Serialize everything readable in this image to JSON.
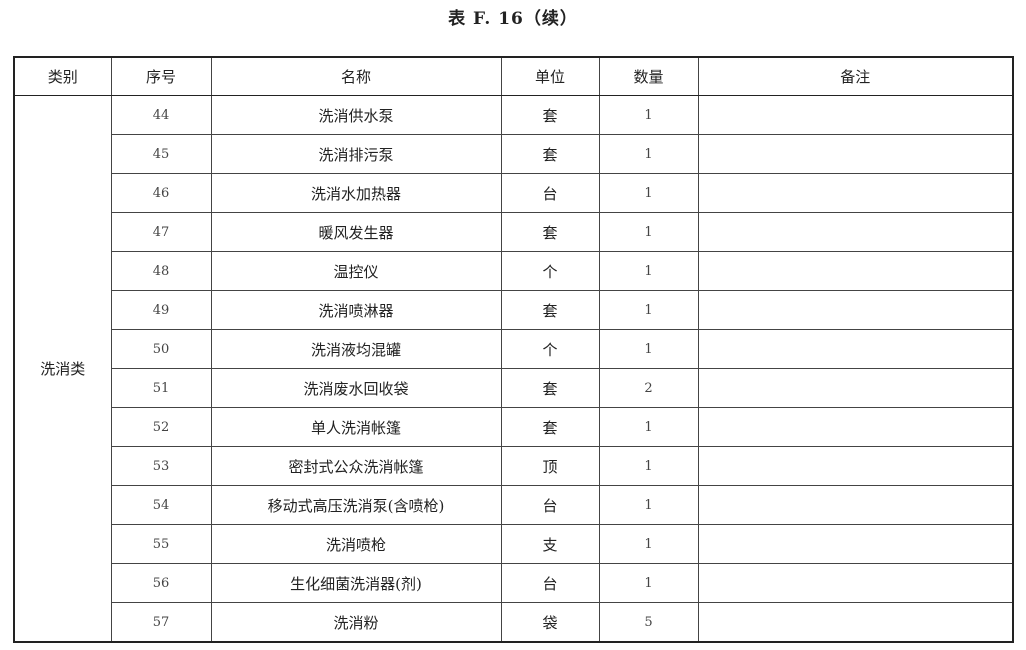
{
  "title": "表 F. 16（续）",
  "headers": [
    "类别",
    "序号",
    "名称",
    "单位",
    "数量",
    "备注"
  ],
  "category": "洗消类",
  "rows": [
    {
      "no": "44",
      "name": "洗消供水泵",
      "unit": "套",
      "qty": "1",
      "note": ""
    },
    {
      "no": "45",
      "name": "洗消排污泵",
      "unit": "套",
      "qty": "1",
      "note": ""
    },
    {
      "no": "46",
      "name": "洗消水加热器",
      "unit": "台",
      "qty": "1",
      "note": ""
    },
    {
      "no": "47",
      "name": "暖风发生器",
      "unit": "套",
      "qty": "1",
      "note": ""
    },
    {
      "no": "48",
      "name": "温控仪",
      "unit": "个",
      "qty": "1",
      "note": ""
    },
    {
      "no": "49",
      "name": "洗消喷淋器",
      "unit": "套",
      "qty": "1",
      "note": ""
    },
    {
      "no": "50",
      "name": "洗消液均混罐",
      "unit": "个",
      "qty": "1",
      "note": ""
    },
    {
      "no": "51",
      "name": "洗消废水回收袋",
      "unit": "套",
      "qty": "2",
      "note": ""
    },
    {
      "no": "52",
      "name": "单人洗消帐篷",
      "unit": "套",
      "qty": "1",
      "note": ""
    },
    {
      "no": "53",
      "name": "密封式公众洗消帐篷",
      "unit": "顶",
      "qty": "1",
      "note": ""
    },
    {
      "no": "54",
      "name": "移动式高压洗消泵(含喷枪)",
      "unit": "台",
      "qty": "1",
      "note": ""
    },
    {
      "no": "55",
      "name": "洗消喷枪",
      "unit": "支",
      "qty": "1",
      "note": ""
    },
    {
      "no": "56",
      "name": "生化细菌洗消器(剂)",
      "unit": "台",
      "qty": "1",
      "note": ""
    },
    {
      "no": "57",
      "name": "洗消粉",
      "unit": "袋",
      "qty": "5",
      "note": ""
    }
  ]
}
